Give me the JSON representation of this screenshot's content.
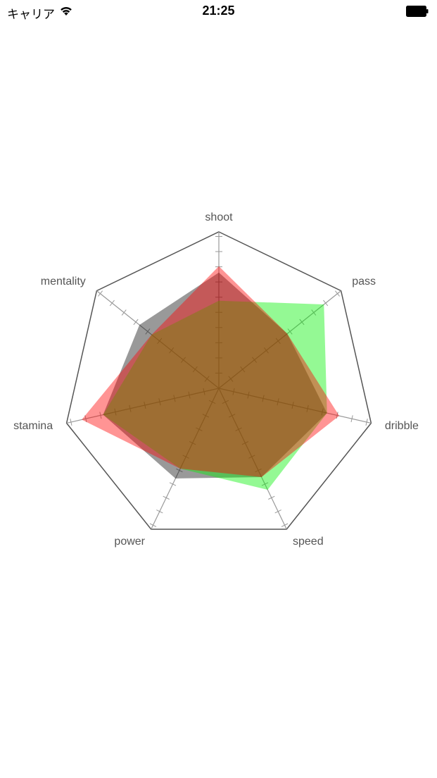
{
  "status_bar": {
    "carrier": "キャリア",
    "time": "21:25"
  },
  "icons": {
    "wifi": "wifi-icon",
    "battery": "battery-full-icon"
  },
  "chart_data": {
    "type": "radar",
    "axes": [
      "shoot",
      "pass",
      "dribble",
      "speed",
      "power",
      "stamina",
      "mentality"
    ],
    "range": [
      0,
      10
    ],
    "ticks": 10,
    "series": [
      {
        "color": "#000000",
        "opacity": 0.4,
        "values": [
          7.4,
          5.6,
          7.1,
          6.3,
          6.4,
          7.6,
          6.5
        ]
      },
      {
        "color": "#00f000",
        "opacity": 0.42,
        "values": [
          5.6,
          8.6,
          7.1,
          7.2,
          5.7,
          7.6,
          5.5
        ]
      },
      {
        "color": "#ff0000",
        "opacity": 0.42,
        "values": [
          7.8,
          5.6,
          7.9,
          6.3,
          5.7,
          9.0,
          5.5
        ]
      }
    ]
  }
}
